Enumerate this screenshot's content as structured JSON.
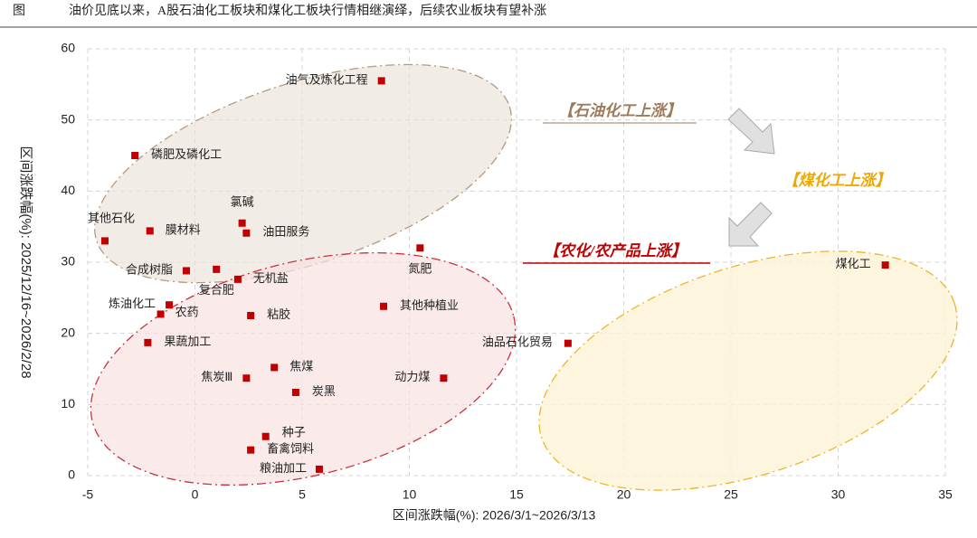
{
  "chart_data": {
    "type": "scatter",
    "figure_label": "图",
    "title": "油价见底以来，A股石油化工板块和煤化工板块行情相继演绎，后续农业板块有望补涨",
    "x_label": "区间涨跌幅(%): 2026/3/1~2026/3/13",
    "y_label": "区间涨跌幅(%): 2025/12/16~2026/2/28",
    "annotations": [
      "【石油化工上涨】",
      "【煤化工上涨】",
      "【农化/农产品上涨】"
    ],
    "color": "#c00000",
    "labels": [
      "油气及炼化工程",
      "磷肥及磷化工",
      "其他石化",
      "膜材料",
      "氯碱",
      "油田服务",
      "氮肥",
      "合成树脂",
      "复合肥",
      "无机盐",
      "炼油化工",
      "农药",
      "粘胶",
      "其他种植业",
      "果蔬加工",
      "油品石化贸易",
      "焦煤",
      "焦炭Ⅲ",
      "动力煤",
      "炭黑",
      "种子",
      "畜禽饲料",
      "粮油加工",
      "煤化工"
    ],
    "x": [
      8.7,
      -2.8,
      -4.2,
      -2.1,
      2.2,
      2.4,
      10.5,
      -0.4,
      1.0,
      2.0,
      -1.2,
      -1.6,
      2.6,
      8.8,
      -2.2,
      17.4,
      3.7,
      2.4,
      11.6,
      4.7,
      3.3,
      2.6,
      5.8,
      32.2
    ],
    "values": [
      55.5,
      45.0,
      33.0,
      34.4,
      35.5,
      34.1,
      32.0,
      28.8,
      29.0,
      27.6,
      24.0,
      22.7,
      22.5,
      23.8,
      18.7,
      18.6,
      15.2,
      13.7,
      13.7,
      11.7,
      5.5,
      3.6,
      0.9,
      29.6
    ],
    "xlim": [
      -5,
      35
    ],
    "xticks": [
      -5,
      0,
      5,
      10,
      15,
      20,
      25,
      30,
      35
    ],
    "ylim": [
      0,
      60
    ],
    "yticks": [
      0,
      10,
      20,
      30,
      40,
      50,
      60
    ],
    "grid": true
  }
}
